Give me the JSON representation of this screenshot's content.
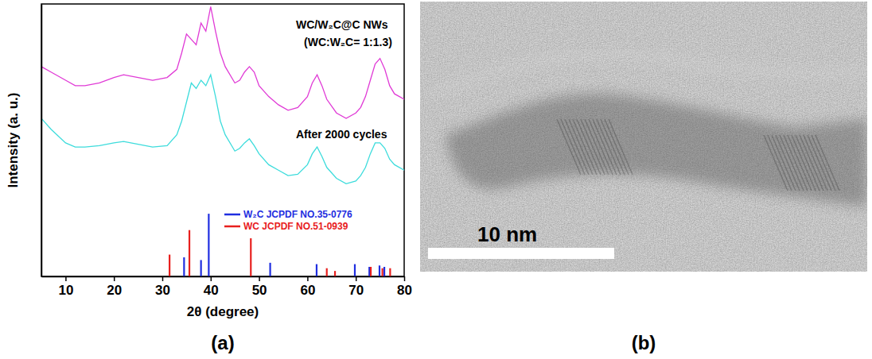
{
  "chart_data": {
    "type": "line",
    "caption": "(a)",
    "x_label": "2θ (degree)",
    "y_label": "Intensity (a. u.)",
    "annotations": [
      "(WC:W₂C= 1:1.3)"
    ],
    "xlim": [
      5,
      80
    ],
    "xticks": [
      10,
      20,
      30,
      40,
      50,
      60,
      70,
      80
    ],
    "ylim": [
      0,
      100
    ],
    "yticks": [],
    "tick_labels": "x",
    "legend": "center",
    "series": [
      {
        "name": "WC/W₂C@C NWs",
        "type": "line",
        "color": "#e03ad6",
        "x": [
          5,
          7,
          10,
          12,
          14,
          17,
          20,
          22,
          25,
          28,
          31,
          33,
          34,
          35,
          36,
          37,
          38,
          39,
          40,
          41,
          42,
          43,
          45,
          46,
          47,
          48,
          49,
          50,
          52,
          54,
          56,
          58,
          60,
          61,
          62,
          63,
          64,
          66,
          68,
          70,
          71,
          72,
          73,
          74,
          75,
          76,
          77,
          78,
          80
        ],
        "values": [
          77,
          75,
          72,
          70,
          70,
          71,
          73,
          74,
          73,
          72,
          73,
          76,
          82,
          89,
          87,
          85,
          93,
          90,
          99,
          90,
          82,
          77,
          71,
          72,
          75,
          77,
          75,
          70,
          66,
          63,
          61,
          62,
          66,
          71,
          74,
          70,
          65,
          60,
          58,
          60,
          62,
          66,
          72,
          78,
          80,
          76,
          70,
          67,
          65
        ]
      },
      {
        "name": "After 2000 cycles",
        "type": "line",
        "color": "#3ddcdc",
        "x": [
          5,
          7,
          10,
          12,
          14,
          17,
          20,
          22,
          25,
          28,
          31,
          33,
          34,
          35,
          36,
          37,
          38,
          39,
          40,
          41,
          42,
          43,
          45,
          46,
          47,
          48,
          49,
          50,
          52,
          54,
          56,
          58,
          60,
          61,
          62,
          63,
          64,
          66,
          68,
          70,
          71,
          72,
          73,
          74,
          75,
          76,
          77,
          78,
          80
        ],
        "values": [
          58,
          54,
          49,
          47.5,
          47.5,
          48,
          49,
          49.5,
          48.5,
          47.5,
          48,
          52,
          57,
          64,
          71,
          69,
          72,
          70,
          74,
          66,
          57,
          52,
          46,
          47,
          49,
          50.5,
          48,
          45,
          41,
          39,
          37,
          37.5,
          41,
          45,
          47.5,
          44,
          40,
          36,
          34,
          35,
          37,
          40,
          45,
          49,
          49,
          47,
          43,
          41,
          39
        ]
      },
      {
        "name": "W₂C JCPDF NO.35-0776",
        "type": "bar",
        "color": "#1f2ee0",
        "x": [
          34.5,
          38.0,
          39.6,
          52.3,
          61.9,
          69.8,
          72.8,
          74.9,
          75.9
        ],
        "values": [
          7,
          6,
          23,
          5,
          4.5,
          4.5,
          3.5,
          4,
          3.5
        ]
      },
      {
        "name": "WC JCPDF NO.51-0939",
        "type": "bar",
        "color": "#e8201e",
        "x": [
          31.5,
          35.6,
          48.3,
          64.0,
          65.7,
          73.1,
          75.5,
          77.1
        ],
        "values": [
          8,
          17,
          14,
          3,
          2,
          3.5,
          3,
          3
        ]
      }
    ]
  },
  "image_panel": {
    "caption": "(b)",
    "scale_bar_label": "10 nm"
  }
}
